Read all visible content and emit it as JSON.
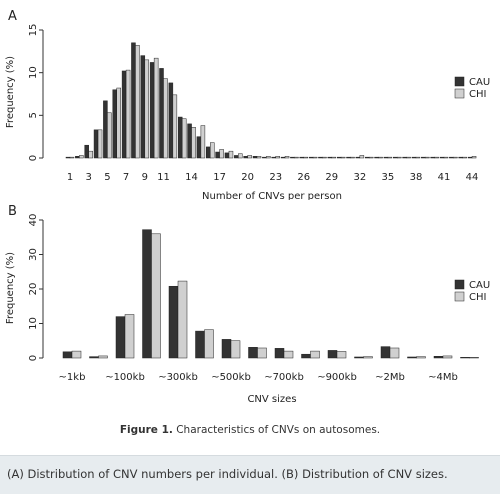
{
  "chart_data": [
    {
      "type": "bar",
      "panel_label": "A",
      "xlabel": "Number of CNVs per person",
      "ylabel": "Frequency (%)",
      "ylim": [
        0,
        15
      ],
      "yticks": [
        "0",
        "5",
        "10",
        "15"
      ],
      "categories": [
        "1",
        "2",
        "3",
        "4",
        "5",
        "6",
        "7",
        "8",
        "9",
        "10",
        "11",
        "12",
        "13",
        "14",
        "15",
        "16",
        "17",
        "18",
        "19",
        "20",
        "21",
        "22",
        "23",
        "24",
        "25",
        "26",
        "27",
        "28",
        "29",
        "30",
        "31",
        "32",
        "33",
        "34",
        "35",
        "36",
        "37",
        "38",
        "39",
        "40",
        "41",
        "42",
        "43",
        "44"
      ],
      "tick_labels": [
        "1",
        "3",
        "5",
        "7",
        "9",
        "11",
        "14",
        "17",
        "20",
        "23",
        "26",
        "29",
        "32",
        "35",
        "38",
        "41",
        "44"
      ],
      "legend_position": "right",
      "series": [
        {
          "name": "CAU",
          "color": "#333333",
          "values": [
            0.1,
            0.2,
            1.5,
            3.3,
            6.7,
            8.0,
            10.2,
            13.5,
            12.0,
            11.2,
            10.5,
            8.8,
            4.8,
            4.0,
            2.5,
            1.3,
            0.7,
            0.6,
            0.3,
            0.2,
            0.2,
            0.1,
            0.1,
            0.1,
            0.1,
            0.1,
            0.1,
            0.1,
            0.1,
            0.1,
            0.1,
            0.1,
            0.1,
            0.1,
            0.1,
            0.1,
            0.1,
            0.1,
            0.1,
            0.1,
            0.1,
            0.1,
            0.1,
            0.1
          ]
        },
        {
          "name": "CHI",
          "color": "#d0d0d0",
          "values": [
            0.1,
            0.3,
            0.8,
            3.3,
            5.3,
            8.2,
            10.3,
            13.2,
            11.5,
            11.7,
            9.3,
            7.4,
            4.6,
            3.6,
            3.8,
            1.8,
            1.0,
            0.8,
            0.5,
            0.3,
            0.2,
            0.2,
            0.2,
            0.2,
            0.1,
            0.1,
            0.1,
            0.1,
            0.1,
            0.1,
            0.1,
            0.3,
            0.1,
            0.1,
            0.1,
            0.1,
            0.1,
            0.1,
            0.1,
            0.1,
            0.1,
            0.1,
            0.1,
            0.2
          ]
        }
      ]
    },
    {
      "type": "bar",
      "panel_label": "B",
      "xlabel": "CNV sizes",
      "ylabel": "Frequency (%)",
      "ylim": [
        0,
        40
      ],
      "yticks": [
        "0",
        "10",
        "20",
        "30",
        "40"
      ],
      "categories": [
        "~1kb",
        "~50kb",
        "~100kb",
        "~200kb",
        "~300kb",
        "~400kb",
        "~500kb",
        "~600kb",
        "~700kb",
        "~800kb",
        "~900kb",
        "~1Mb",
        "~2Mb",
        "~3Mb",
        "~4Mb",
        "~5Mb"
      ],
      "tick_labels": [
        "~1kb",
        "~100kb",
        "~300kb",
        "~500kb",
        "~700kb",
        "~900kb",
        "~2Mb",
        "~4Mb"
      ],
      "legend_position": "right",
      "series": [
        {
          "name": "CAU",
          "color": "#333333",
          "values": [
            1.8,
            0.4,
            12.0,
            37.2,
            20.8,
            7.8,
            5.4,
            3.1,
            2.8,
            1.1,
            2.2,
            0.3,
            3.3,
            0.3,
            0.5,
            0.2
          ]
        },
        {
          "name": "CHI",
          "color": "#d0d0d0",
          "values": [
            2.0,
            0.6,
            12.6,
            36.0,
            22.3,
            8.2,
            5.0,
            2.9,
            2.0,
            2.0,
            1.9,
            0.4,
            2.9,
            0.4,
            0.6,
            0.2
          ]
        }
      ]
    }
  ],
  "caption": {
    "label": "Figure 1.",
    "text": " Characteristics of CNVs on autosomes."
  },
  "legend_text": "(A) Distribution of CNV numbers per individual. (B) Distribution of CNV sizes."
}
